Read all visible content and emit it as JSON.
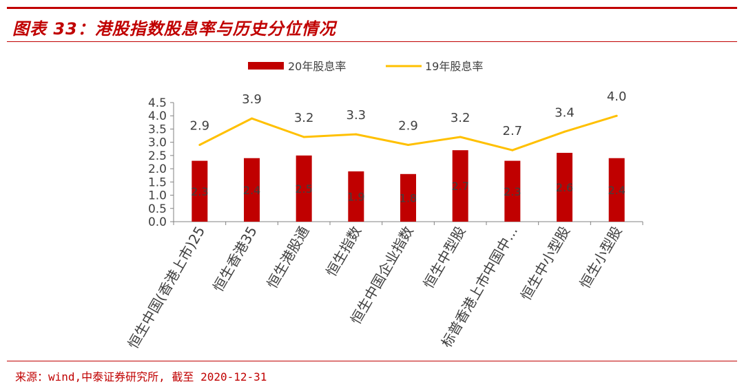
{
  "figure": {
    "title": "图表 33：港股指数股息率与历史分位情况",
    "source": "来源：wind,中泰证券研究所, 截至 2020-12-31"
  },
  "colors": {
    "accent": "#c00000",
    "bar": "#c00000",
    "line": "#ffc000",
    "axis": "#808080",
    "text": "#404040"
  },
  "chart_data": {
    "type": "bar",
    "categories": [
      "恒生中国(香港上市)25",
      "恒生香港35",
      "恒生港股通",
      "恒生指数",
      "恒生中国企业指数",
      "恒生中型股",
      "标普香港上市中国中...",
      "恒生中小型股",
      "恒生小型股"
    ],
    "series": [
      {
        "name": "20年股息率",
        "type": "bar",
        "values": [
          2.3,
          2.4,
          2.5,
          1.9,
          1.8,
          2.7,
          2.3,
          2.6,
          2.4
        ]
      },
      {
        "name": "19年股息率",
        "type": "line",
        "values": [
          2.9,
          3.9,
          3.2,
          3.3,
          2.9,
          3.2,
          2.7,
          3.4,
          4.0
        ]
      }
    ],
    "ylim": [
      0,
      4.5
    ],
    "yticks": [
      "0.0",
      "0.5",
      "1.0",
      "1.5",
      "2.0",
      "2.5",
      "3.0",
      "3.5",
      "4.0",
      "4.5"
    ],
    "legend_position": "top",
    "grid": false
  }
}
